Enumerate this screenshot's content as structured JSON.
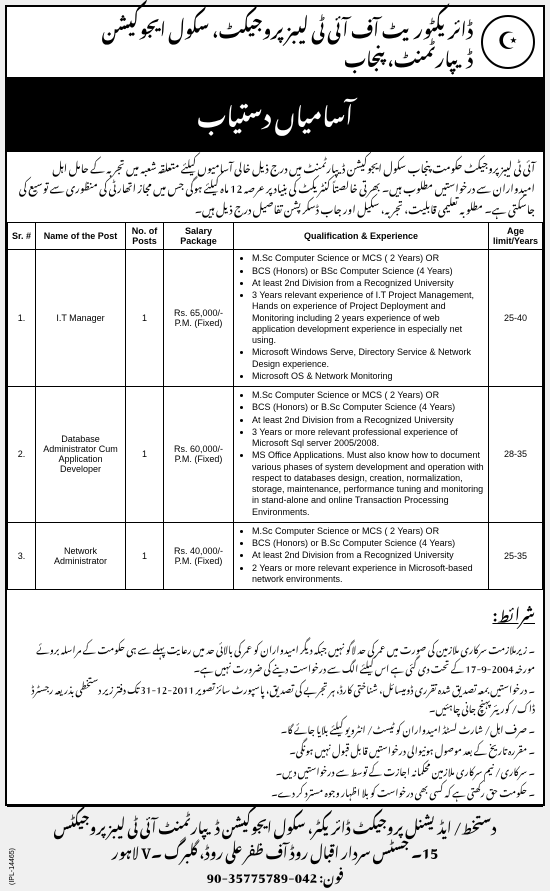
{
  "header": {
    "org_line": "ڈائریکٹوریٹ آف آئی ٹی لیبز پروجیکٹ، سکول ایجوکیشن ڈیپارٹمنٹ، پنجاب",
    "emblem_glyph": "☪"
  },
  "banner": "آسامیاں دستیاب",
  "intro": "آئی ٹی لیبز پروجیکٹ حکومت پنجاب سکول ایجوکیشن ڈیپارٹمنٹ میں درج ذیل خالی آسامیوں کیلئے متعلقہ شعبہ میں تجربہ کے حامل اہل امیدواران سے درخواستیں مطلوب ہیں۔ بھرتی خالصتاً کنٹریکٹ کی بنیاد پر عرصہ 12 ماہ کیلئے ہوگی جس میں مجاز اتھارٹی کی منظوری سے توسیع کی جاسکتی ہے۔ مطلوبہ تعلیمی قابلیت، تجربہ، سکیل اور جاب ڈسکرپشن تفاصیل درج ذیل ہیں۔",
  "table": {
    "headers": {
      "sr": "Sr. #",
      "name": "Name of the Post",
      "no": "No. of Posts",
      "salary": "Salary Package",
      "qual": "Qualification & Experience",
      "age": "Age limit/Years"
    },
    "rows": [
      {
        "sr": "1.",
        "name": "I.T Manager",
        "no": "1",
        "salary": "Rs. 65,000/- P.M. (Fixed)",
        "qual": [
          "M.Sc Computer Science or MCS ( 2 Years) OR",
          "BCS (Honors) or BSc Computer Science (4 Years)",
          "At least 2nd Division from a Recognized University",
          "3 Years relevant experience of I.T Project Management, Hands on experience of Project Deployment and Monitoring including 2 years experience of web application development experience in especially net using.",
          "Microsoft Windows Serve, Directory Service & Network Design experience.",
          "Microsoft OS & Network Monitoring"
        ],
        "age": "25-40"
      },
      {
        "sr": "2.",
        "name": "Database Administrator Cum Application Developer",
        "no": "1",
        "salary": "Rs. 60,000/- P.M. (Fixed)",
        "qual": [
          "M.Sc Computer Science or MCS ( 2 Years) OR",
          "BCS (Honors) or B.Sc Computer Science (4 Years)",
          "At least 2nd Division from a Recognized University",
          "3 Years or more relevant professional experience of Microsoft Sql server 2005/2008.",
          "MS Office Applications. Must also know how to document various phases of system development and operation with respect to databases design, creation, normalization, storage, maintenance, performance tuning and monitoring in stand-alone and online Transaction Processing Environments."
        ],
        "age": "28-35"
      },
      {
        "sr": "3.",
        "name": "Network Administrator",
        "no": "1",
        "salary": "Rs. 40,000/- P.M. (Fixed)",
        "qual": [
          "M.Sc Computer Science or MCS ( 2 Years) OR",
          "BCS (Honors) or B.Sc Computer Science (4 Years)",
          "At least 2nd Division from a Recognized University",
          "2 Years or more relevant experience in Microsoft-based network environments."
        ],
        "age": "25-35"
      }
    ]
  },
  "conditions_heading": "شرائط:",
  "conditions": [
    "۔ زیرملازمت سرکاری ملازمین کی صورت میں عمر کی حد لاگو نہیں جبکہ دیگر امیدواران کو عمر کی بالائی حد میں رعایت پہلے سے ہی حکومت کے مراسلہ بروئے مورخہ 2004-9-17 کے تحت دی گئی ہے اس کیلئے الگ سے درخواست دینے کی ضرورت نہیں ہے۔",
    "۔ درخواستیں بمعہ تصدیق شدہ تقرری ڈومیسائل، شناختی کارڈ، ہر تجربے کی تصدیق، پاسپورٹ سائز تصویر 2011-12-31 تک دفتر زیر دستخطی بذریعہ رجسٹرڈ ڈاک/ کوریئر پہنچ جانی چاہئیں۔",
    "۔ صرف اہل/ شارٹ لسٹڈ امیدواران کو ٹیسٹ/ انٹرویو کیلئے بلایا جائے گا۔",
    "۔ مقررہ تاریخ کے بعد موصول ہونیوالی درخواستیں قابل قبول نہیں ہونگی۔",
    "۔ سرکاری/ نیم سرکاری ملازمین محکمانہ اجازت کے توسط سے درخواستیں دیں۔",
    "۔ حکومت حق رکھتی ہے کہ کسی بھی درخواست کو بلا اظہار وجوہ مسترد کر دے۔"
  ],
  "footer": {
    "signatory": "دستخط/ ایڈیشنل پروجیکٹ ڈائریکٹر، سکول ایجوکیشن ڈیپارٹمنٹ آئی ٹی لیبز پروجیکٹس",
    "address": "15۔ جسٹس سردار اقبال روڈ آف ظفر علی روڈ، گلبرگ ۔V لاہور",
    "phone": "فون: 042-35775789-90",
    "ipl": "(IPL-14465)"
  }
}
